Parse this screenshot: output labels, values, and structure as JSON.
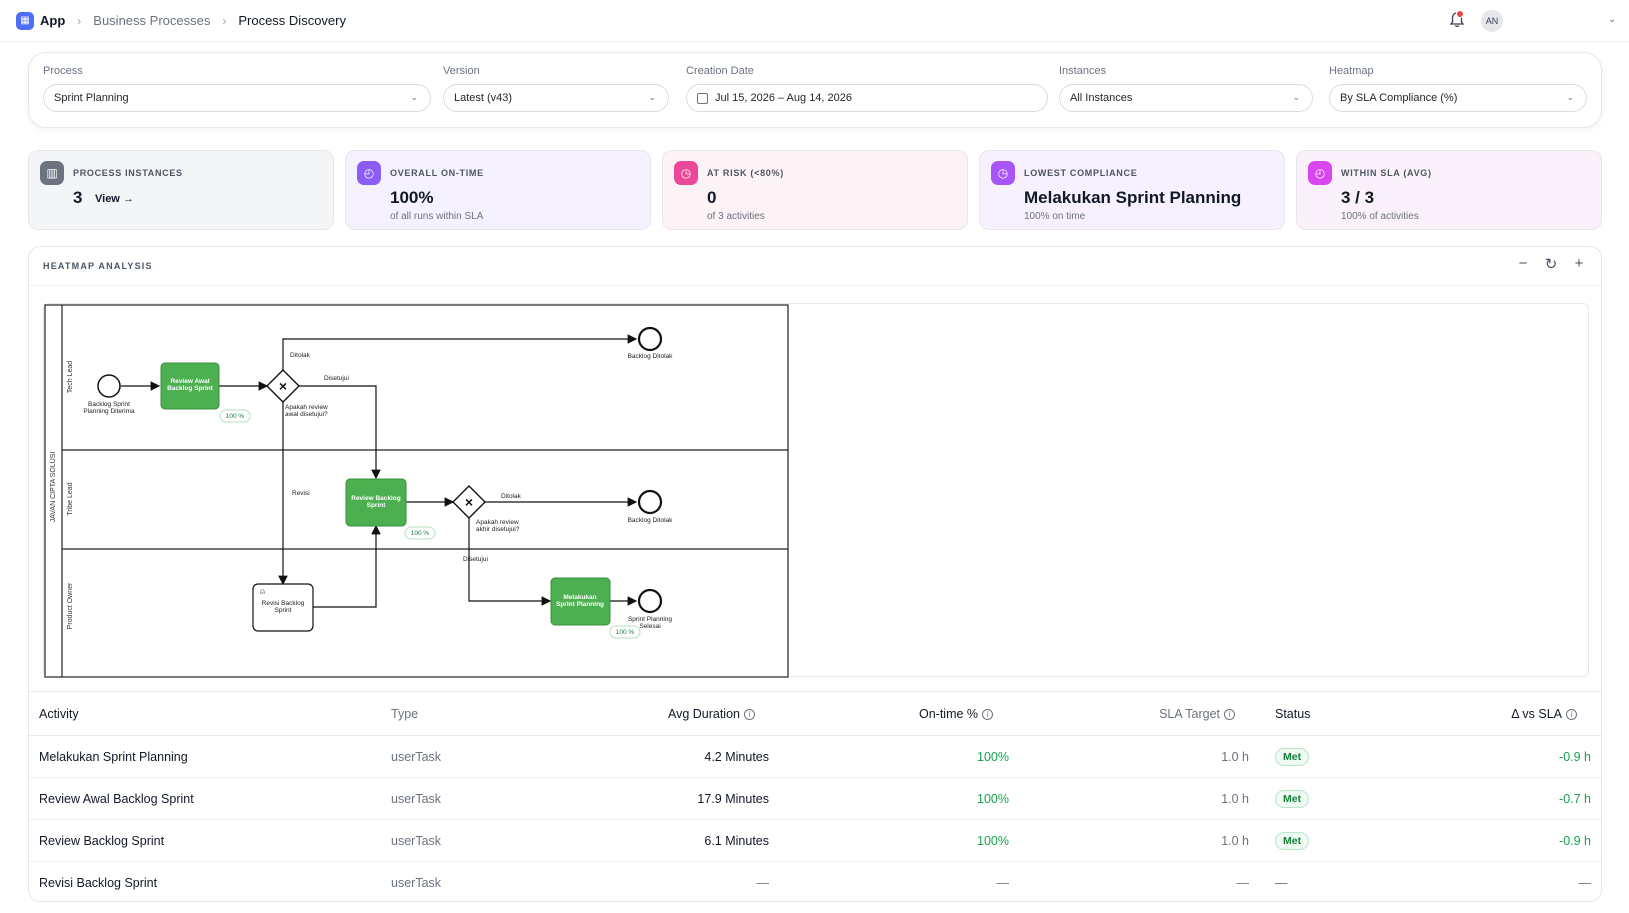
{
  "breadcrumb": {
    "app": "App",
    "items": [
      "Business Processes",
      "Process Discovery"
    ]
  },
  "user": {
    "initials": "AN"
  },
  "filters": {
    "process": {
      "label": "Process",
      "value": "Sprint Planning"
    },
    "version": {
      "label": "Version",
      "value": "Latest (v43)"
    },
    "creation_date": {
      "label": "Creation Date",
      "value": "Jul 15, 2026 – Aug 14, 2026"
    },
    "instances": {
      "label": "Instances",
      "value": "All Instances"
    },
    "heatmap": {
      "label": "Heatmap",
      "value": "By SLA Compliance (%)"
    }
  },
  "kpis": [
    {
      "label": "PROCESS INSTANCES",
      "value": "3",
      "link": "View →",
      "sub": "",
      "icon": "bar-chart-icon",
      "accent": "#6b7280",
      "bg": "#f4f5f7"
    },
    {
      "label": "OVERALL ON-TIME",
      "value": "100%",
      "sub": "of all runs within SLA",
      "icon": "clock-icon",
      "accent": "#8b5cf6",
      "bg": "#f6f2fd"
    },
    {
      "label": "AT RISK (<80%)",
      "value": "0",
      "sub": "of 3 activities",
      "icon": "stopwatch-icon",
      "accent": "#ec4899",
      "bg": "#fdf2f6"
    },
    {
      "label": "LOWEST COMPLIANCE",
      "value": "Melakukan Sprint Planning",
      "sub": "100% on time",
      "icon": "stopwatch-icon",
      "accent": "#a855f7",
      "bg": "#f7f1fd"
    },
    {
      "label": "WITHIN SLA (AVG)",
      "value": "3 / 3",
      "sub": "100% of activities",
      "icon": "clock-icon",
      "accent": "#d946ef",
      "bg": "#fbf1fb"
    }
  ],
  "heatmap": {
    "title": "HEATMAP ANALYSIS",
    "pool": "JAVAN CIPTA SOLUSI",
    "lanes": [
      "Tech Lead",
      "Tribe Lead",
      "Product Owner"
    ],
    "tasks": {
      "review_awal": "Review Awal Backlog Sprint",
      "review_backlog": "Review Backlog Sprint",
      "melakukan": "Melakukan Sprint Planning",
      "revisi": "Revisi Backlog Sprint"
    },
    "events": {
      "start": "Backlog Sprint Planning Diterima",
      "end_ditolak_1": "Backlog Ditolak",
      "end_ditolak_2": "Backlog Ditolak",
      "end_selesai": "Sprint Planning Selesai"
    },
    "gateways": {
      "gw1": "Apakah review awal disetujui?",
      "gw2": "Apakah review akhir disetujui?"
    },
    "flows": {
      "ditolak": "Ditolak",
      "disetujui": "Disetujui",
      "revisi": "Revisi"
    },
    "compliance": {
      "review_awal": "100 %",
      "review_backlog": "100 %",
      "melakukan": "100 %"
    }
  },
  "table": {
    "headers": [
      "Activity",
      "Type",
      "Avg Duration",
      "On-time %",
      "SLA Target",
      "Status",
      "Δ vs SLA"
    ],
    "rows": [
      {
        "activity": "Melakukan Sprint Planning",
        "type": "userTask",
        "avg": "4.2 Minutes",
        "ontime": "100%",
        "sla": "1.0 h",
        "status": "Met",
        "delta": "-0.9 h"
      },
      {
        "activity": "Review Awal Backlog Sprint",
        "type": "userTask",
        "avg": "17.9 Minutes",
        "ontime": "100%",
        "sla": "1.0 h",
        "status": "Met",
        "delta": "-0.7 h"
      },
      {
        "activity": "Review Backlog Sprint",
        "type": "userTask",
        "avg": "6.1 Minutes",
        "ontime": "100%",
        "sla": "1.0 h",
        "status": "Met",
        "delta": "-0.9 h"
      },
      {
        "activity": "Revisi Backlog Sprint",
        "type": "userTask",
        "avg": "—",
        "ontime": "—",
        "sla": "—",
        "status": "—",
        "delta": "—"
      }
    ]
  }
}
